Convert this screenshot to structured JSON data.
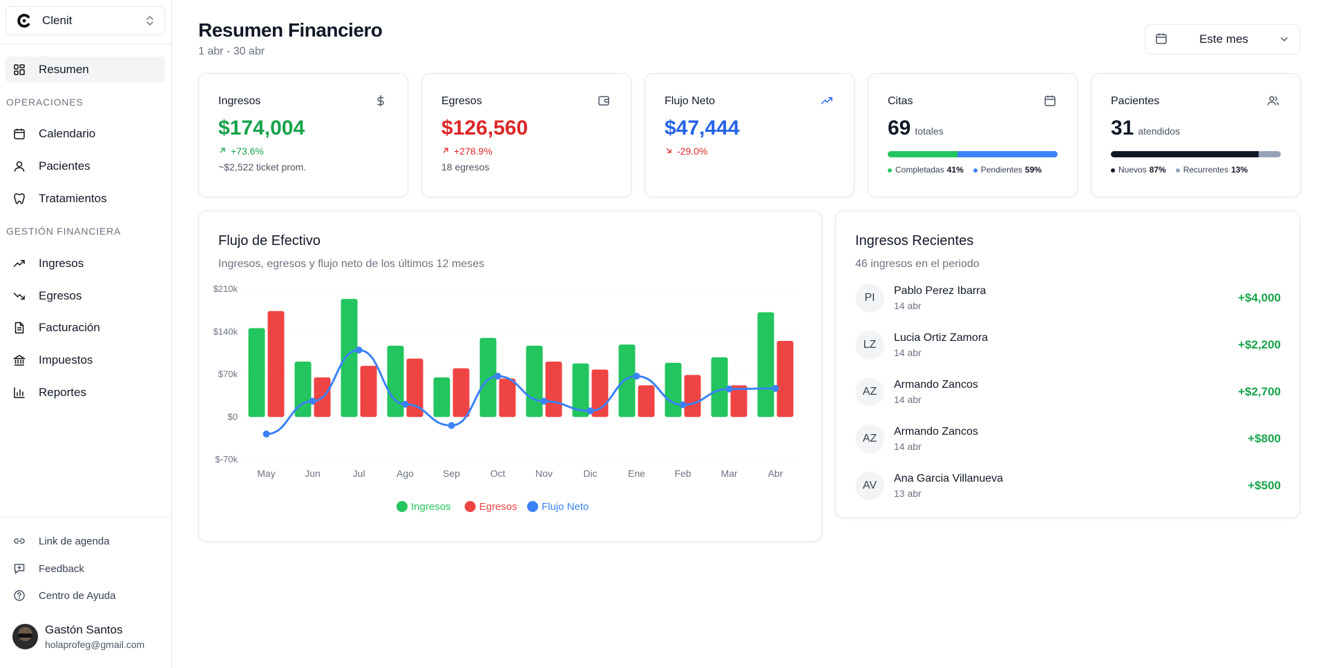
{
  "org": {
    "name": "Clenit"
  },
  "nav": {
    "main": [
      {
        "label": "Resumen",
        "icon": "dashboard-icon",
        "active": true
      }
    ],
    "operaciones_title": "OPERACIONES",
    "operaciones": [
      {
        "label": "Calendario",
        "icon": "calendar-icon"
      },
      {
        "label": "Pacientes",
        "icon": "user-icon"
      },
      {
        "label": "Tratamientos",
        "icon": "tooth-icon"
      }
    ],
    "finanzas_title": "GESTIÓN FINANCIERA",
    "finanzas": [
      {
        "label": "Ingresos",
        "icon": "trend-up-icon"
      },
      {
        "label": "Egresos",
        "icon": "trend-down-icon"
      },
      {
        "label": "Facturación",
        "icon": "document-icon"
      },
      {
        "label": "Impuestos",
        "icon": "bank-icon"
      },
      {
        "label": "Reportes",
        "icon": "bar-chart-icon"
      }
    ],
    "utilities": [
      {
        "label": "Link de agenda",
        "icon": "link-icon"
      },
      {
        "label": "Feedback",
        "icon": "feedback-icon"
      },
      {
        "label": "Centro de Ayuda",
        "icon": "help-icon"
      }
    ]
  },
  "user": {
    "name": "Gastón Santos",
    "email": "holaprofeg@gmail.com"
  },
  "header": {
    "title": "Resumen Financiero",
    "range": "1 abr - 30 abr",
    "period": "Este mes"
  },
  "kpis": {
    "ingresos": {
      "title": "Ingresos",
      "value": "$174,004",
      "change": "+73.6%",
      "note": "~$2,522 ticket prom."
    },
    "egresos": {
      "title": "Egresos",
      "value": "$126,560",
      "change": "+278.9%",
      "note": "18 egresos"
    },
    "flujo": {
      "title": "Flujo Neto",
      "value": "$47,444",
      "change": "-29.0%"
    },
    "citas": {
      "title": "Citas",
      "value": "69",
      "unit": "totales",
      "a_label": "Completadas",
      "a_pct": "41%",
      "b_label": "Pendientes",
      "b_pct": "59%",
      "a_frac": 0.41
    },
    "pacientes": {
      "title": "Pacientes",
      "value": "31",
      "unit": "atendidos",
      "a_label": "Nuevos",
      "a_pct": "87%",
      "b_label": "Recurrentes",
      "b_pct": "13%",
      "a_frac": 0.87
    }
  },
  "colors": {
    "green": "#22c55e",
    "red": "#ef4444",
    "blue": "#3b82f6",
    "green_text": "#16a34a",
    "red_text": "#dc2626",
    "blue_text": "#2563eb"
  },
  "cashflow": {
    "title": "Flujo de Efectivo",
    "subtitle": "Ingresos, egresos y flujo neto de los últimos 12 meses"
  },
  "chart_data": {
    "type": "bar",
    "categories": [
      "May",
      "Jun",
      "Jul",
      "Ago",
      "Sep",
      "Oct",
      "Nov",
      "Dic",
      "Ene",
      "Feb",
      "Mar",
      "Abr"
    ],
    "series": [
      {
        "name": "Ingresos",
        "kind": "bar",
        "color": "#22c55e",
        "values": [
          146000,
          91000,
          194000,
          117000,
          65000,
          130000,
          117000,
          88000,
          119000,
          89000,
          98000,
          172000
        ]
      },
      {
        "name": "Egresos",
        "kind": "bar",
        "color": "#ef4444",
        "values": [
          174000,
          65000,
          84000,
          96000,
          80000,
          63000,
          91000,
          78000,
          52000,
          69000,
          52000,
          125000
        ]
      },
      {
        "name": "Flujo Neto",
        "kind": "line",
        "color": "#3b82f6",
        "values": [
          -28000,
          26000,
          110000,
          21000,
          -14000,
          67000,
          26000,
          10000,
          67000,
          20000,
          46000,
          47000
        ]
      }
    ],
    "yticks": [
      "$210k",
      "$140k",
      "$70k",
      "$0",
      "$-70k"
    ],
    "ylim": [
      -70000,
      210000
    ],
    "legend": "bottom"
  },
  "recent": {
    "title": "Ingresos Recientes",
    "subtitle": "46 ingresos en el periodo",
    "items": [
      {
        "initials": "PI",
        "name": "Pablo Perez Ibarra",
        "date": "14 abr",
        "amount": "+$4,000"
      },
      {
        "initials": "LZ",
        "name": "Lucia Ortiz Zamora",
        "date": "14 abr",
        "amount": "+$2,200"
      },
      {
        "initials": "AZ",
        "name": "Armando Zancos",
        "date": "14 abr",
        "amount": "+$2,700"
      },
      {
        "initials": "AZ",
        "name": "Armando Zancos",
        "date": "14 abr",
        "amount": "+$800"
      },
      {
        "initials": "AV",
        "name": "Ana Garcia Villanueva",
        "date": "13 abr",
        "amount": "+$500"
      }
    ]
  }
}
